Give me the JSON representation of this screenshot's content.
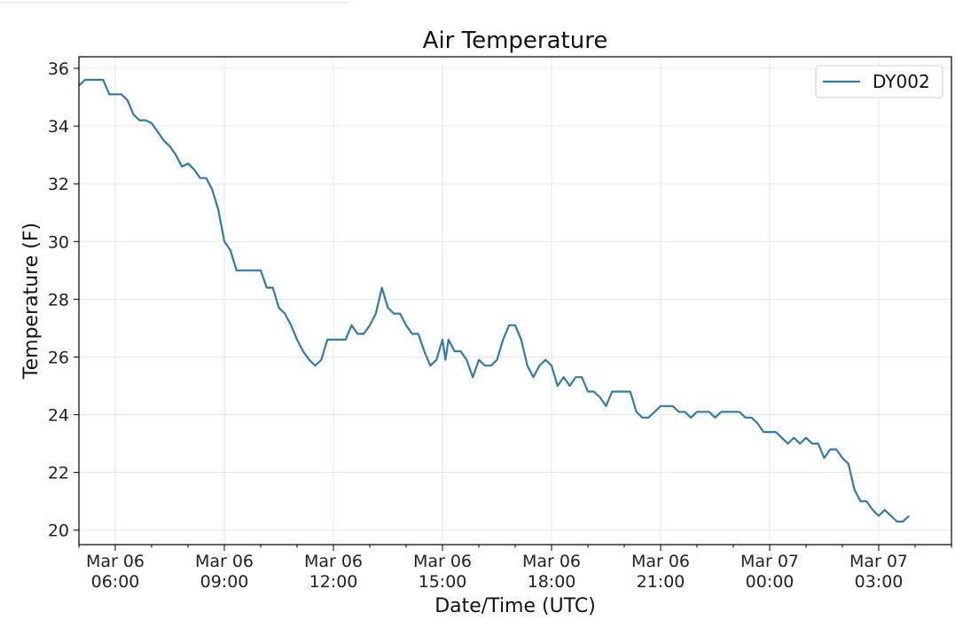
{
  "chart_data": {
    "type": "line",
    "title": "Air Temperature",
    "xlabel": "Date/Time (UTC)",
    "ylabel": "Temperature (F)",
    "ylim": [
      19.5,
      36.4
    ],
    "xlim": [
      "Mar 06 05:00",
      "Mar 07 05:00"
    ],
    "grid": true,
    "legend_position": "top-right",
    "y_ticks": [
      "20",
      "22",
      "24",
      "26",
      "28",
      "30",
      "32",
      "34",
      "36"
    ],
    "x_ticks": [
      {
        "line1": "Mar 06",
        "line2": "06:00"
      },
      {
        "line1": "Mar 06",
        "line2": "09:00"
      },
      {
        "line1": "Mar 06",
        "line2": "12:00"
      },
      {
        "line1": "Mar 06",
        "line2": "15:00"
      },
      {
        "line1": "Mar 06",
        "line2": "18:00"
      },
      {
        "line1": "Mar 06",
        "line2": "21:00"
      },
      {
        "line1": "Mar 07",
        "line2": "00:00"
      },
      {
        "line1": "Mar 07",
        "line2": "03:00"
      }
    ],
    "series": [
      {
        "name": "DY002",
        "color": "#2f7bab",
        "points": [
          [
            "Mar 06 05:00",
            35.4
          ],
          [
            "Mar 06 05:10",
            35.6
          ],
          [
            "Mar 06 05:20",
            35.6
          ],
          [
            "Mar 06 05:30",
            35.6
          ],
          [
            "Mar 06 05:40",
            35.6
          ],
          [
            "Mar 06 05:50",
            35.1
          ],
          [
            "Mar 06 06:00",
            35.1
          ],
          [
            "Mar 06 06:10",
            35.1
          ],
          [
            "Mar 06 06:20",
            34.9
          ],
          [
            "Mar 06 06:30",
            34.4
          ],
          [
            "Mar 06 06:40",
            34.2
          ],
          [
            "Mar 06 06:50",
            34.2
          ],
          [
            "Mar 06 07:00",
            34.1
          ],
          [
            "Mar 06 07:10",
            33.8
          ],
          [
            "Mar 06 07:20",
            33.5
          ],
          [
            "Mar 06 07:30",
            33.3
          ],
          [
            "Mar 06 07:40",
            33.0
          ],
          [
            "Mar 06 07:50",
            32.6
          ],
          [
            "Mar 06 08:00",
            32.7
          ],
          [
            "Mar 06 08:10",
            32.5
          ],
          [
            "Mar 06 08:20",
            32.2
          ],
          [
            "Mar 06 08:30",
            32.2
          ],
          [
            "Mar 06 08:40",
            31.8
          ],
          [
            "Mar 06 08:50",
            31.1
          ],
          [
            "Mar 06 09:00",
            30.0
          ],
          [
            "Mar 06 09:10",
            29.7
          ],
          [
            "Mar 06 09:20",
            29.0
          ],
          [
            "Mar 06 09:30",
            29.0
          ],
          [
            "Mar 06 09:40",
            29.0
          ],
          [
            "Mar 06 09:50",
            29.0
          ],
          [
            "Mar 06 10:00",
            29.0
          ],
          [
            "Mar 06 10:10",
            28.4
          ],
          [
            "Mar 06 10:20",
            28.4
          ],
          [
            "Mar 06 10:30",
            27.7
          ],
          [
            "Mar 06 10:40",
            27.5
          ],
          [
            "Mar 06 10:50",
            27.1
          ],
          [
            "Mar 06 11:00",
            26.6
          ],
          [
            "Mar 06 11:10",
            26.2
          ],
          [
            "Mar 06 11:20",
            25.9
          ],
          [
            "Mar 06 11:30",
            25.7
          ],
          [
            "Mar 06 11:40",
            25.9
          ],
          [
            "Mar 06 11:50",
            26.6
          ],
          [
            "Mar 06 12:00",
            26.6
          ],
          [
            "Mar 06 12:10",
            26.6
          ],
          [
            "Mar 06 12:20",
            26.6
          ],
          [
            "Mar 06 12:30",
            27.1
          ],
          [
            "Mar 06 12:40",
            26.8
          ],
          [
            "Mar 06 12:50",
            26.8
          ],
          [
            "Mar 06 13:00",
            27.1
          ],
          [
            "Mar 06 13:10",
            27.5
          ],
          [
            "Mar 06 13:20",
            28.4
          ],
          [
            "Mar 06 13:30",
            27.7
          ],
          [
            "Mar 06 13:40",
            27.5
          ],
          [
            "Mar 06 13:50",
            27.5
          ],
          [
            "Mar 06 14:00",
            27.1
          ],
          [
            "Mar 06 14:10",
            26.8
          ],
          [
            "Mar 06 14:20",
            26.8
          ],
          [
            "Mar 06 14:30",
            26.2
          ],
          [
            "Mar 06 14:40",
            25.7
          ],
          [
            "Mar 06 14:50",
            25.9
          ],
          [
            "Mar 06 15:00",
            26.6
          ],
          [
            "Mar 06 15:05",
            25.9
          ],
          [
            "Mar 06 15:10",
            26.6
          ],
          [
            "Mar 06 15:20",
            26.2
          ],
          [
            "Mar 06 15:30",
            26.2
          ],
          [
            "Mar 06 15:40",
            25.9
          ],
          [
            "Mar 06 15:50",
            25.3
          ],
          [
            "Mar 06 16:00",
            25.9
          ],
          [
            "Mar 06 16:10",
            25.7
          ],
          [
            "Mar 06 16:20",
            25.7
          ],
          [
            "Mar 06 16:30",
            25.9
          ],
          [
            "Mar 06 16:40",
            26.6
          ],
          [
            "Mar 06 16:50",
            27.1
          ],
          [
            "Mar 06 17:00",
            27.1
          ],
          [
            "Mar 06 17:10",
            26.6
          ],
          [
            "Mar 06 17:20",
            25.7
          ],
          [
            "Mar 06 17:30",
            25.3
          ],
          [
            "Mar 06 17:40",
            25.7
          ],
          [
            "Mar 06 17:50",
            25.9
          ],
          [
            "Mar 06 18:00",
            25.7
          ],
          [
            "Mar 06 18:10",
            25.0
          ],
          [
            "Mar 06 18:20",
            25.3
          ],
          [
            "Mar 06 18:30",
            25.0
          ],
          [
            "Mar 06 18:40",
            25.3
          ],
          [
            "Mar 06 18:50",
            25.3
          ],
          [
            "Mar 06 19:00",
            24.8
          ],
          [
            "Mar 06 19:10",
            24.8
          ],
          [
            "Mar 06 19:20",
            24.6
          ],
          [
            "Mar 06 19:30",
            24.3
          ],
          [
            "Mar 06 19:40",
            24.8
          ],
          [
            "Mar 06 19:50",
            24.8
          ],
          [
            "Mar 06 20:00",
            24.8
          ],
          [
            "Mar 06 20:10",
            24.8
          ],
          [
            "Mar 06 20:20",
            24.1
          ],
          [
            "Mar 06 20:30",
            23.9
          ],
          [
            "Mar 06 20:40",
            23.9
          ],
          [
            "Mar 06 20:50",
            24.1
          ],
          [
            "Mar 06 21:00",
            24.3
          ],
          [
            "Mar 06 21:10",
            24.3
          ],
          [
            "Mar 06 21:20",
            24.3
          ],
          [
            "Mar 06 21:30",
            24.1
          ],
          [
            "Mar 06 21:40",
            24.1
          ],
          [
            "Mar 06 21:50",
            23.9
          ],
          [
            "Mar 06 22:00",
            24.1
          ],
          [
            "Mar 06 22:10",
            24.1
          ],
          [
            "Mar 06 22:20",
            24.1
          ],
          [
            "Mar 06 22:30",
            23.9
          ],
          [
            "Mar 06 22:40",
            24.1
          ],
          [
            "Mar 06 22:50",
            24.1
          ],
          [
            "Mar 06 23:00",
            24.1
          ],
          [
            "Mar 06 23:10",
            24.1
          ],
          [
            "Mar 06 23:20",
            23.9
          ],
          [
            "Mar 06 23:30",
            23.9
          ],
          [
            "Mar 06 23:40",
            23.7
          ],
          [
            "Mar 06 23:50",
            23.4
          ],
          [
            "Mar 07 00:00",
            23.4
          ],
          [
            "Mar 07 00:10",
            23.4
          ],
          [
            "Mar 07 00:20",
            23.2
          ],
          [
            "Mar 07 00:30",
            23.0
          ],
          [
            "Mar 07 00:40",
            23.2
          ],
          [
            "Mar 07 00:50",
            23.0
          ],
          [
            "Mar 07 01:00",
            23.2
          ],
          [
            "Mar 07 01:10",
            23.0
          ],
          [
            "Mar 07 01:20",
            23.0
          ],
          [
            "Mar 07 01:30",
            22.5
          ],
          [
            "Mar 07 01:40",
            22.8
          ],
          [
            "Mar 07 01:50",
            22.8
          ],
          [
            "Mar 07 02:00",
            22.5
          ],
          [
            "Mar 07 02:10",
            22.3
          ],
          [
            "Mar 07 02:20",
            21.4
          ],
          [
            "Mar 07 02:30",
            21.0
          ],
          [
            "Mar 07 02:40",
            21.0
          ],
          [
            "Mar 07 02:50",
            20.7
          ],
          [
            "Mar 07 03:00",
            20.5
          ],
          [
            "Mar 07 03:10",
            20.7
          ],
          [
            "Mar 07 03:20",
            20.5
          ],
          [
            "Mar 07 03:30",
            20.3
          ],
          [
            "Mar 07 03:40",
            20.3
          ],
          [
            "Mar 07 03:50",
            20.5
          ]
        ]
      }
    ]
  }
}
